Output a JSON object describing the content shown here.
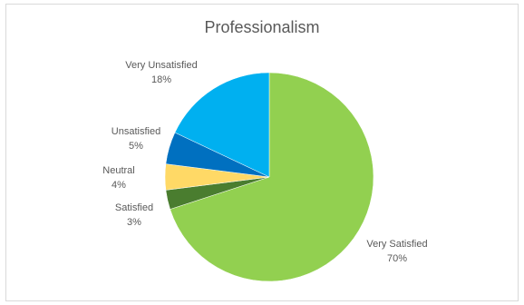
{
  "chart_data": {
    "type": "pie",
    "title": "Professionalism",
    "slices": [
      {
        "label": "Very Satisfied",
        "value": 70,
        "color": "#92d050"
      },
      {
        "label": "Satisfied",
        "value": 3,
        "color": "#4a7d2f"
      },
      {
        "label": "Neutral",
        "value": 4,
        "color": "#ffd966"
      },
      {
        "label": "Unsatisfied",
        "value": 5,
        "color": "#0070c0"
      },
      {
        "label": "Very Unsatisfied",
        "value": 18,
        "color": "#00b0f0"
      }
    ],
    "data_labels": [
      {
        "category": "Very Satisfied",
        "percent": "70%"
      },
      {
        "category": "Satisfied",
        "percent": "3%"
      },
      {
        "category": "Neutral",
        "percent": "4%"
      },
      {
        "category": "Unsatisfied",
        "percent": "5%"
      },
      {
        "category": "Very Unsatisfied",
        "percent": "18%"
      }
    ]
  }
}
